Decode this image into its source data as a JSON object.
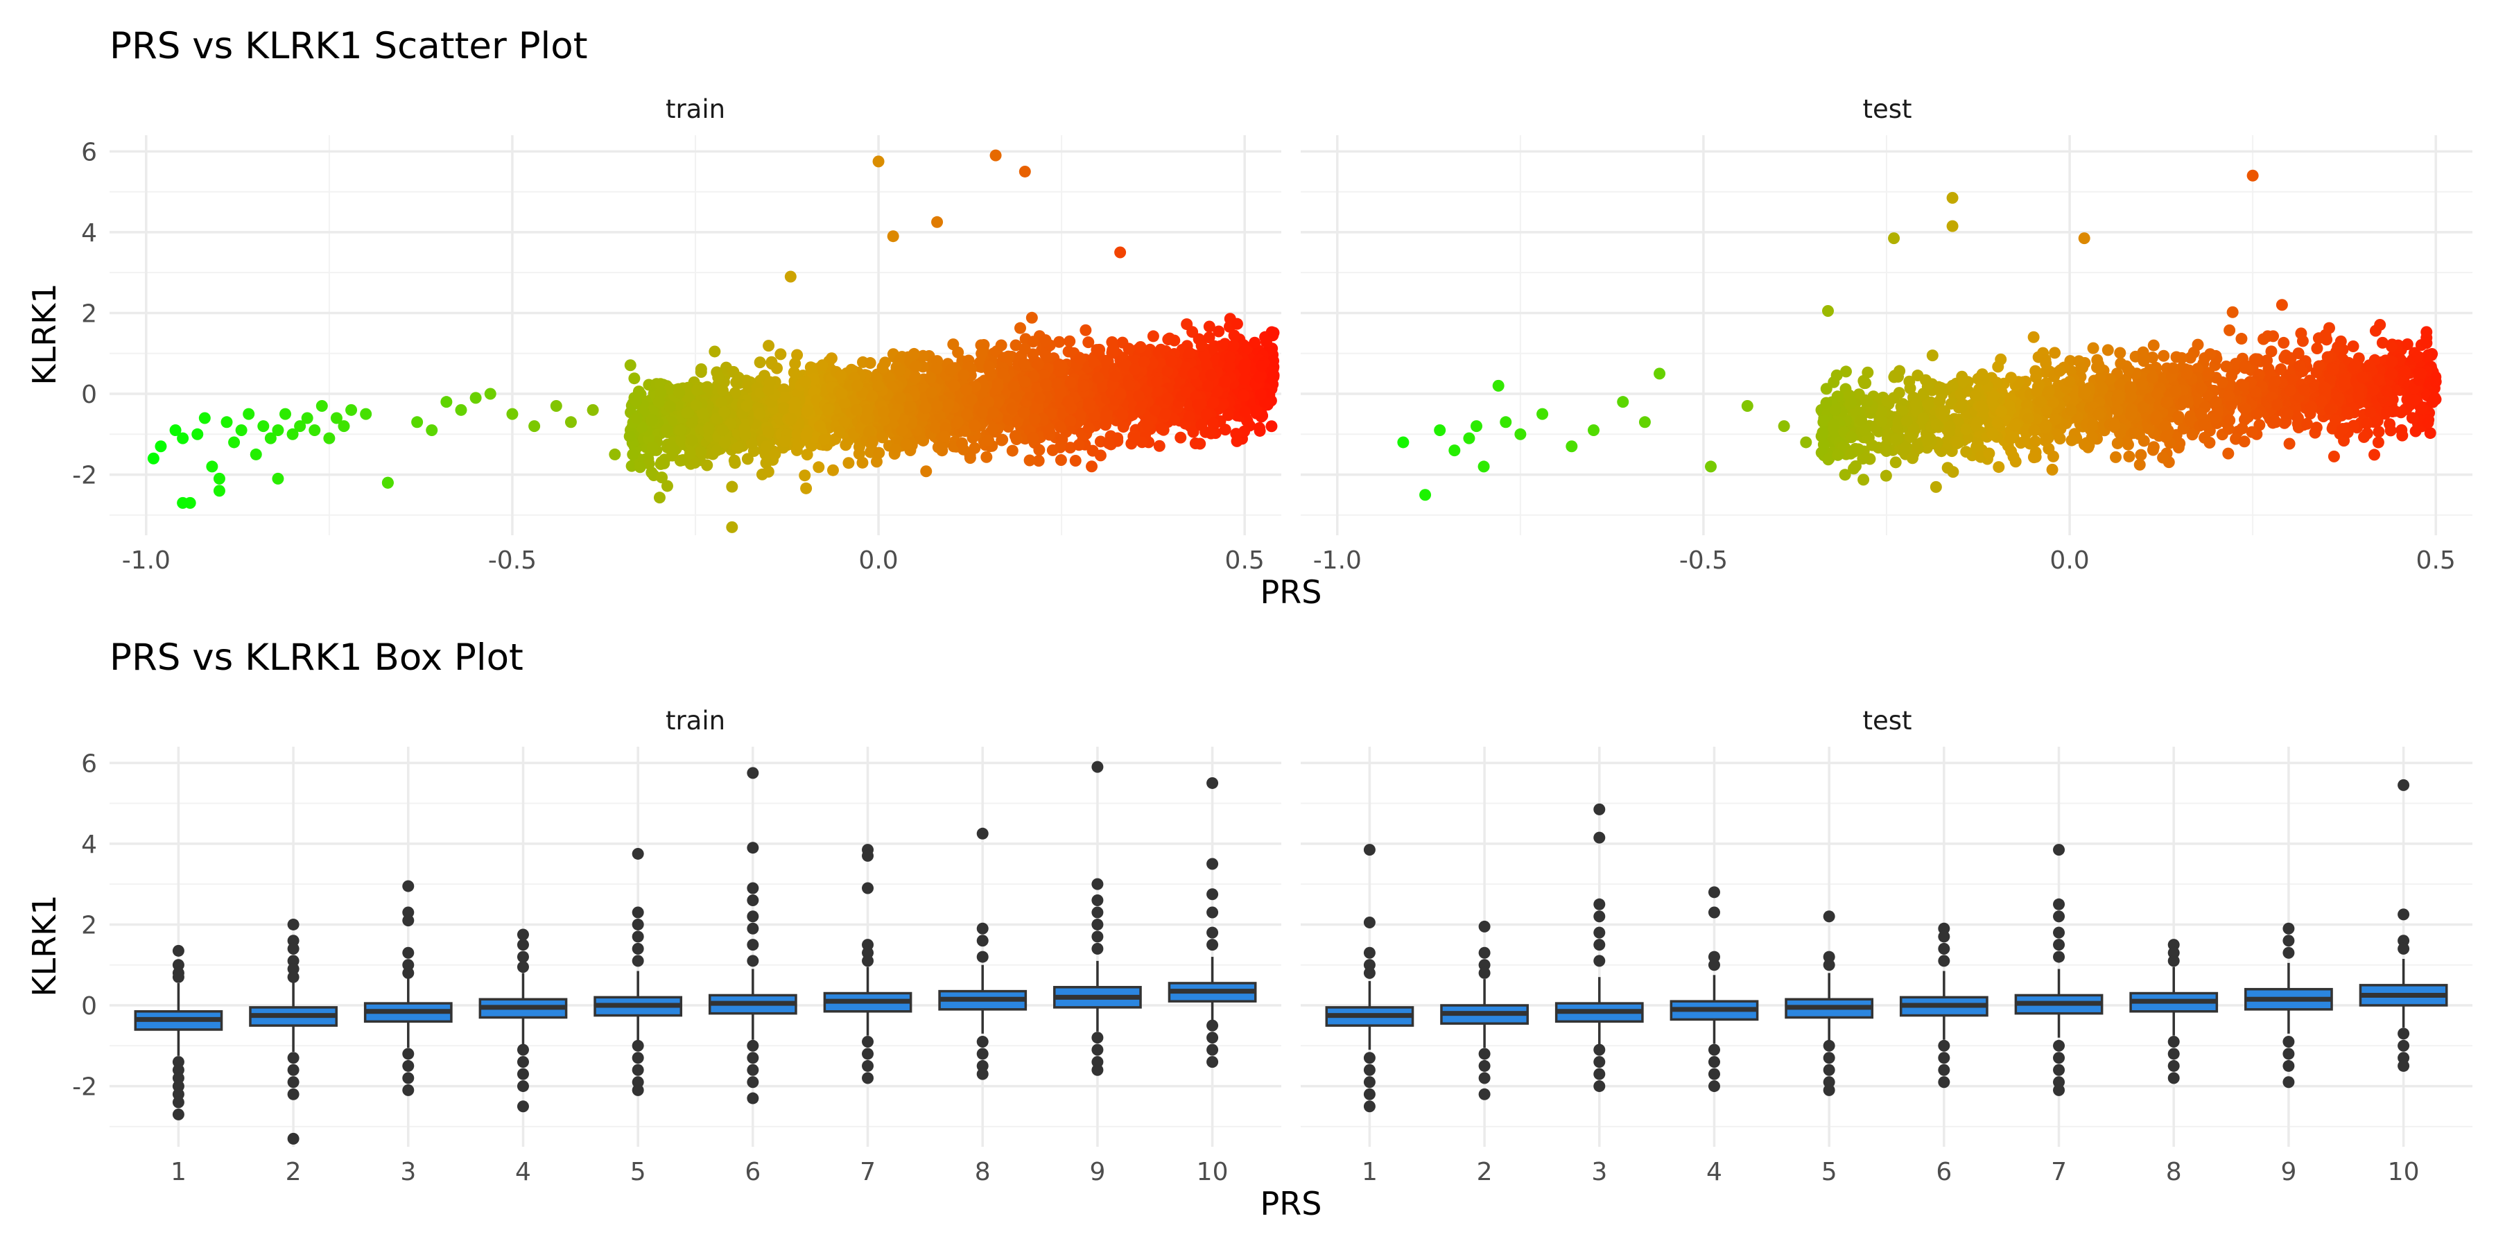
{
  "chart_data": [
    {
      "type": "scatter",
      "title": "PRS vs KLRK1 Scatter Plot",
      "xlabel": "PRS",
      "ylabel": "KLRK1",
      "xlim": [
        -1.05,
        0.55
      ],
      "ylim": [
        -3.5,
        6.4
      ],
      "xticks": [
        -1.0,
        -0.5,
        0.0,
        0.5
      ],
      "xtick_labels": [
        "-1.0",
        "-0.5",
        "0.0",
        "0.5"
      ],
      "yticks": [
        -2,
        0,
        2,
        4,
        6
      ],
      "ytick_labels": [
        "-2",
        "0",
        "2",
        "4",
        "6"
      ],
      "grid": true,
      "color_scale": {
        "low": "#00ff00",
        "mid": "#d4a000",
        "high": "#ff1a00"
      },
      "facets": [
        {
          "label": "train",
          "x": [
            -0.99,
            -0.98,
            -0.96,
            -0.95,
            -0.94,
            -0.93,
            -0.92,
            -0.91,
            -0.9,
            -0.89,
            -0.88,
            -0.87,
            -0.86,
            -0.85,
            -0.84,
            -0.83,
            -0.82,
            -0.81,
            -0.8,
            -0.79,
            -0.78,
            -0.77,
            -0.76,
            -0.75,
            -0.74,
            -0.73,
            -0.72,
            -0.7,
            -0.67,
            -0.63,
            -0.61,
            -0.59,
            -0.57,
            -0.55,
            -0.53,
            -0.5,
            -0.47,
            -0.44,
            -0.42,
            -0.39,
            -0.36,
            -0.33,
            -0.3,
            -0.27,
            -0.24,
            -0.21,
            -0.2,
            -0.18,
            -0.15,
            -0.12,
            -0.1,
            -0.08,
            -0.05,
            -0.03,
            0.0,
            0.03,
            0.05,
            0.08,
            0.1,
            0.12,
            0.15,
            0.17,
            0.2,
            0.22,
            0.25,
            0.28,
            0.3,
            0.33,
            0.35,
            0.38,
            0.4,
            0.43,
            0.45,
            0.48,
            0.5,
            0.52,
            0.16,
            0.2,
            0.0,
            0.08,
            0.33,
            0.02,
            -0.12,
            -0.2,
            -0.9,
            -0.95,
            -0.67,
            -0.82
          ],
          "y": [
            -1.6,
            -1.3,
            -0.9,
            -1.1,
            -2.7,
            -1.0,
            -0.6,
            -1.8,
            -2.1,
            -0.7,
            -1.2,
            -0.9,
            -0.5,
            -1.5,
            -0.8,
            -1.1,
            -0.9,
            -0.5,
            -1.0,
            -0.8,
            -0.6,
            -0.9,
            -0.3,
            -1.1,
            -0.6,
            -0.8,
            -0.4,
            -0.5,
            -2.2,
            -0.7,
            -0.9,
            -0.2,
            -0.4,
            -0.1,
            0.0,
            -0.5,
            -0.8,
            -0.3,
            -0.7,
            -0.4,
            -1.5,
            -0.6,
            -0.2,
            -0.9,
            -0.5,
            -1.2,
            -3.3,
            -0.3,
            0.1,
            -0.6,
            0.3,
            -0.8,
            0.0,
            -0.4,
            0.2,
            -0.1,
            0.4,
            -0.3,
            0.6,
            0.1,
            -0.2,
            0.5,
            0.3,
            -0.1,
            0.7,
            0.2,
            0.4,
            0.0,
            0.6,
            0.3,
            0.8,
            0.5,
            0.2,
            0.9,
            0.6,
            0.4,
            5.9,
            5.5,
            5.75,
            4.25,
            3.5,
            3.9,
            2.9,
            -2.3,
            -2.4,
            -2.7,
            -2.2,
            -2.1
          ]
        },
        {
          "label": "test",
          "x": [
            -0.91,
            -0.88,
            -0.86,
            -0.84,
            -0.82,
            -0.81,
            -0.8,
            -0.78,
            -0.77,
            -0.75,
            -0.72,
            -0.68,
            -0.65,
            -0.61,
            -0.58,
            -0.56,
            -0.49,
            -0.44,
            -0.39,
            -0.36,
            -0.32,
            -0.28,
            -0.24,
            -0.2,
            -0.16,
            -0.12,
            -0.08,
            -0.04,
            0.0,
            0.04,
            0.08,
            0.12,
            0.16,
            0.2,
            0.24,
            0.28,
            0.32,
            0.36,
            0.4,
            0.44,
            0.48,
            0.5,
            -0.16,
            -0.16,
            -0.24,
            0.25,
            0.02,
            -0.33,
            0.29
          ],
          "y": [
            -1.2,
            -2.5,
            -0.9,
            -1.4,
            -1.1,
            -0.8,
            -1.8,
            0.2,
            -0.7,
            -1.0,
            -0.5,
            -1.3,
            -0.9,
            -0.2,
            -0.7,
            0.5,
            -1.8,
            -0.3,
            -0.8,
            -1.2,
            -0.4,
            -0.9,
            -0.1,
            -0.6,
            0.2,
            -0.3,
            0.4,
            -0.2,
            0.3,
            -0.5,
            0.6,
            0.0,
            0.5,
            -0.2,
            0.7,
            0.3,
            0.1,
            0.6,
            0.4,
            0.8,
            0.5,
            0.3,
            4.85,
            4.15,
            3.85,
            5.4,
            3.85,
            2.05,
            2.2
          ]
        }
      ]
    },
    {
      "type": "box",
      "title": "PRS vs KLRK1 Box Plot",
      "xlabel": "PRS",
      "ylabel": "KLRK1",
      "ylim": [
        -3.5,
        6.4
      ],
      "yticks": [
        -2,
        0,
        2,
        4,
        6
      ],
      "ytick_labels": [
        "-2",
        "0",
        "2",
        "4",
        "6"
      ],
      "categories": [
        "1",
        "2",
        "3",
        "4",
        "5",
        "6",
        "7",
        "8",
        "9",
        "10"
      ],
      "box_color": "#2b86e0",
      "grid": true,
      "facets": [
        {
          "label": "train",
          "boxes": [
            {
              "q1": -0.6,
              "median": -0.35,
              "q3": -0.15,
              "wlo": -1.25,
              "whi": 0.55,
              "out": [
                1.35,
                1.0,
                0.8,
                0.7,
                -1.4,
                -1.6,
                -1.8,
                -2.0,
                -2.2,
                -2.4,
                -2.7
              ]
            },
            {
              "q1": -0.5,
              "median": -0.25,
              "q3": -0.05,
              "wlo": -1.15,
              "whi": 0.6,
              "out": [
                2.0,
                1.6,
                1.4,
                1.1,
                0.9,
                0.7,
                -1.3,
                -1.6,
                -1.9,
                -2.2,
                -3.3
              ]
            },
            {
              "q1": -0.4,
              "median": -0.15,
              "q3": 0.05,
              "wlo": -1.05,
              "whi": 0.7,
              "out": [
                2.95,
                2.3,
                2.1,
                1.3,
                1.0,
                0.8,
                -1.2,
                -1.5,
                -1.8,
                -2.1
              ]
            },
            {
              "q1": -0.3,
              "median": -0.05,
              "q3": 0.15,
              "wlo": -1.0,
              "whi": 0.8,
              "out": [
                1.75,
                1.5,
                1.2,
                0.95,
                -1.1,
                -1.4,
                -1.7,
                -2.0,
                -2.5
              ]
            },
            {
              "q1": -0.25,
              "median": 0.0,
              "q3": 0.2,
              "wlo": -0.9,
              "whi": 0.85,
              "out": [
                3.75,
                2.3,
                2.0,
                1.7,
                1.4,
                1.1,
                -1.0,
                -1.3,
                -1.6,
                -1.9,
                -2.1
              ]
            },
            {
              "q1": -0.2,
              "median": 0.05,
              "q3": 0.25,
              "wlo": -0.85,
              "whi": 0.9,
              "out": [
                5.75,
                3.9,
                2.9,
                2.6,
                2.2,
                1.9,
                1.5,
                1.1,
                -1.0,
                -1.3,
                -1.6,
                -1.9,
                -2.3
              ]
            },
            {
              "q1": -0.15,
              "median": 0.1,
              "q3": 0.3,
              "wlo": -0.75,
              "whi": 0.95,
              "out": [
                3.85,
                3.7,
                2.9,
                1.5,
                1.3,
                1.1,
                -0.9,
                -1.2,
                -1.5,
                -1.8
              ]
            },
            {
              "q1": -0.1,
              "median": 0.15,
              "q3": 0.35,
              "wlo": -0.7,
              "whi": 1.0,
              "out": [
                4.25,
                1.9,
                1.6,
                1.2,
                -0.9,
                -1.2,
                -1.5,
                -1.7
              ]
            },
            {
              "q1": -0.05,
              "median": 0.2,
              "q3": 0.45,
              "wlo": -0.65,
              "whi": 1.1,
              "out": [
                5.9,
                3.0,
                2.6,
                2.3,
                2.0,
                1.7,
                1.4,
                -0.8,
                -1.1,
                -1.4,
                -1.6
              ]
            },
            {
              "q1": 0.1,
              "median": 0.35,
              "q3": 0.55,
              "wlo": -0.45,
              "whi": 1.2,
              "out": [
                5.5,
                3.5,
                2.75,
                2.3,
                1.8,
                1.5,
                -0.5,
                -0.8,
                -1.1,
                -1.4
              ]
            }
          ]
        },
        {
          "label": "test",
          "boxes": [
            {
              "q1": -0.5,
              "median": -0.25,
              "q3": -0.05,
              "wlo": -1.1,
              "whi": 0.6,
              "out": [
                3.85,
                2.05,
                1.3,
                1.0,
                0.8,
                -1.3,
                -1.6,
                -1.9,
                -2.2,
                -2.5
              ]
            },
            {
              "q1": -0.45,
              "median": -0.2,
              "q3": 0.0,
              "wlo": -1.05,
              "whi": 0.65,
              "out": [
                1.95,
                1.3,
                1.0,
                0.8,
                -1.2,
                -1.5,
                -1.8,
                -2.2
              ]
            },
            {
              "q1": -0.4,
              "median": -0.15,
              "q3": 0.05,
              "wlo": -1.0,
              "whi": 0.7,
              "out": [
                4.85,
                4.15,
                2.5,
                2.2,
                1.8,
                1.5,
                1.1,
                -1.1,
                -1.4,
                -1.7,
                -2.0
              ]
            },
            {
              "q1": -0.35,
              "median": -0.1,
              "q3": 0.1,
              "wlo": -0.95,
              "whi": 0.75,
              "out": [
                2.8,
                2.3,
                1.2,
                1.0,
                -1.1,
                -1.4,
                -1.7,
                -2.0
              ]
            },
            {
              "q1": -0.3,
              "median": -0.05,
              "q3": 0.15,
              "wlo": -0.9,
              "whi": 0.8,
              "out": [
                2.2,
                1.2,
                1.0,
                -1.0,
                -1.3,
                -1.6,
                -1.9,
                -2.1
              ]
            },
            {
              "q1": -0.25,
              "median": 0.0,
              "q3": 0.2,
              "wlo": -0.85,
              "whi": 0.85,
              "out": [
                1.9,
                1.7,
                1.4,
                1.1,
                -1.0,
                -1.3,
                -1.6,
                -1.9
              ]
            },
            {
              "q1": -0.2,
              "median": 0.05,
              "q3": 0.25,
              "wlo": -0.8,
              "whi": 0.9,
              "out": [
                3.85,
                2.5,
                2.2,
                1.8,
                1.5,
                1.2,
                -1.0,
                -1.3,
                -1.6,
                -1.9,
                -2.1
              ]
            },
            {
              "q1": -0.15,
              "median": 0.1,
              "q3": 0.3,
              "wlo": -0.75,
              "whi": 0.95,
              "out": [
                1.5,
                1.3,
                1.1,
                -0.9,
                -1.2,
                -1.5,
                -1.8
              ]
            },
            {
              "q1": -0.1,
              "median": 0.15,
              "q3": 0.4,
              "wlo": -0.7,
              "whi": 1.05,
              "out": [
                1.9,
                1.6,
                1.3,
                -0.9,
                -1.2,
                -1.5,
                -1.9
              ]
            },
            {
              "q1": 0.0,
              "median": 0.25,
              "q3": 0.5,
              "wlo": -0.55,
              "whi": 1.15,
              "out": [
                5.45,
                2.25,
                1.6,
                1.4,
                -0.7,
                -1.0,
                -1.3,
                -1.5
              ]
            }
          ]
        }
      ]
    }
  ]
}
